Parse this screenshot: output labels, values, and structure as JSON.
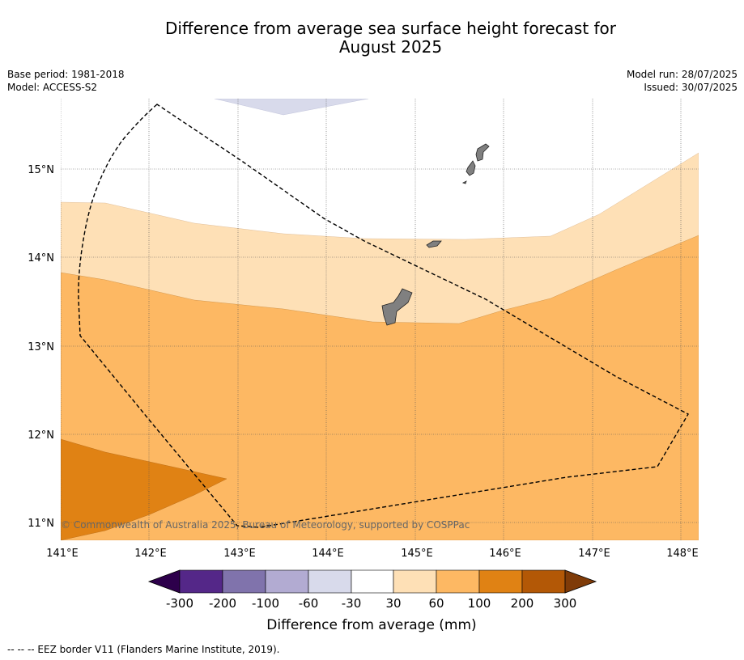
{
  "title_line1": "Difference from average sea surface height forecast for",
  "title_line2": "August 2025",
  "meta_left": [
    "Base period: 1981-2018",
    "Model: ACCESS-S2"
  ],
  "meta_right": [
    "Model run: 28/07/2025",
    "Issued: 30/07/2025"
  ],
  "copyright": "© Commonwealth of Australia 2025, Bureau of Meteorology, supported by COSPPac",
  "footnote": "--  --  -- EEZ border V11 (Flanders Marine Institute, 2019).",
  "map": {
    "lon_range": [
      141.0,
      148.2
    ],
    "lat_range": [
      10.8,
      15.8
    ],
    "lon_ticks": [
      141,
      142,
      143,
      144,
      145,
      146,
      147,
      148
    ],
    "lon_labels": [
      "141°E",
      "142°E",
      "143°E",
      "144°E",
      "145°E",
      "146°E",
      "147°E",
      "148°E"
    ],
    "lat_ticks": [
      11,
      12,
      13,
      14,
      15
    ],
    "lat_labels": [
      "11°N",
      "12°N",
      "13°N",
      "14°N",
      "15°N"
    ],
    "gridlines": true
  },
  "colorbar": {
    "label": "Difference from average (mm)",
    "tick_labels": [
      "-300",
      "-200",
      "-100",
      "-60",
      "-30",
      "30",
      "60",
      "100",
      "200",
      "300"
    ],
    "colors": [
      "#542788",
      "#8073ac",
      "#b2abd2",
      "#d8daeb",
      "#ffffff",
      "#fee0b6",
      "#fdb863",
      "#e08214",
      "#b35806"
    ],
    "extend_low_color": "#2d004b",
    "extend_high_color": "#7f3b08"
  }
}
